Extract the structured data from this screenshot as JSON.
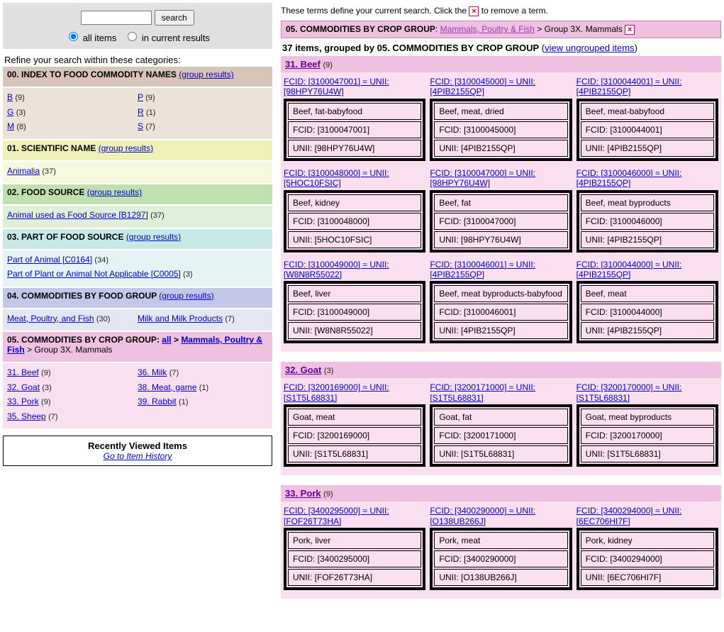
{
  "search": {
    "button": "search",
    "scope_all": "all items",
    "scope_cur": "in current results",
    "scope_sel": "all"
  },
  "refine_heading": "Refine your search within these categories:",
  "categories": {
    "c00": {
      "title": "00. INDEX TO FOOD COMMODITY NAMES",
      "gr": "(group results)",
      "col1": [
        {
          "l": "B",
          "c": "(9)"
        },
        {
          "l": "G",
          "c": "(3)"
        },
        {
          "l": "M",
          "c": "(8)"
        }
      ],
      "col2": [
        {
          "l": "P",
          "c": "(9)"
        },
        {
          "l": "R",
          "c": "(1)"
        },
        {
          "l": "S",
          "c": "(7)"
        }
      ]
    },
    "c01": {
      "title": "01. SCIENTIFIC NAME",
      "gr": "(group results)",
      "items": [
        {
          "l": "Animalia",
          "c": "(37)"
        }
      ]
    },
    "c02": {
      "title": "02. FOOD SOURCE",
      "gr": "(group results)",
      "items": [
        {
          "l": "Animal used as Food Source [B1297]",
          "c": "(37)"
        }
      ]
    },
    "c03": {
      "title": "03. PART OF FOOD SOURCE",
      "gr": "(group results)",
      "items": [
        {
          "l": "Part of Animal [C0164]",
          "c": "(34)"
        },
        {
          "l": "Part of Plant or Animal Not Applicable [C0005]",
          "c": "(3)"
        }
      ]
    },
    "c04": {
      "title": "04. COMMODITIES BY FOOD GROUP",
      "gr": "(group results)",
      "col1": [
        {
          "l": "Meat, Poultry, and Fish",
          "c": "(30)"
        }
      ],
      "col2": [
        {
          "l": "Milk and Milk Products",
          "c": "(7)"
        }
      ]
    },
    "c05": {
      "prefix": "05. COMMODITIES BY CROP GROUP",
      "all": "all",
      "br": "Mammals, Poultry & Fish",
      "tail": "> Group 3X. Mammals",
      "col1": [
        {
          "l": "31. Beef",
          "c": "(9)"
        },
        {
          "l": "32. Goat",
          "c": "(3)"
        },
        {
          "l": "33. Pork",
          "c": "(9)"
        },
        {
          "l": "35. Sheep",
          "c": "(7)"
        }
      ],
      "col2": [
        {
          "l": "36. Milk",
          "c": "(7)"
        },
        {
          "l": "38. Meat, game",
          "c": "(1)"
        },
        {
          "l": "39. Rabbit",
          "c": "(1)"
        }
      ]
    }
  },
  "recent": {
    "title": "Recently Viewed Items",
    "link": "Go to Item History"
  },
  "terms_text_a": "These terms define your current search. Click the",
  "terms_text_b": "to remove a term.",
  "crumb": {
    "label": "05. COMMODITIES BY CROP GROUP",
    "link": "Mammals, Poultry & Fish",
    "tail": "Group 3X. Mammals"
  },
  "countline": {
    "a": "37 items, grouped by",
    "b": "05. COMMODITIES BY CROP GROUP",
    "link": "view ungrouped items"
  },
  "sections": [
    {
      "title": "31. Beef",
      "cnt": "(9)",
      "rows": [
        [
          {
            "link": "FCID: [3100047001] ≈ UNII: [98HPY76U4W]",
            "name": "Beef, fat-babyfood",
            "fcid": "FCID: [3100047001]",
            "unii": "UNII: [98HPY76U4W]"
          },
          {
            "link": "FCID: [3100045000] ≈ UNII: [4PIB2155QP]",
            "name": "Beef, meat, dried",
            "fcid": "FCID: [3100045000]",
            "unii": "UNII: [4PIB2155QP]"
          },
          {
            "link": "FCID: [3100044001] ≈ UNII: [4PIB2155QP]",
            "name": "Beef, meat-babyfood",
            "fcid": "FCID: [3100044001]",
            "unii": "UNII: [4PIB2155QP]"
          }
        ],
        [
          {
            "link": "FCID: [3100048000] ≈ UNII: [5HOC10FSIC]",
            "name": "Beef, kidney",
            "fcid": "FCID: [3100048000]",
            "unii": "UNII: [5HOC10FSIC]"
          },
          {
            "link": "FCID: [3100047000] ≈ UNII: [98HPY76U4W]",
            "name": "Beef, fat",
            "fcid": "FCID: [3100047000]",
            "unii": "UNII: [98HPY76U4W]"
          },
          {
            "link": "FCID: [3100046000] ≈ UNII: [4PIB2155QP]",
            "name": "Beef, meat byproducts",
            "fcid": "FCID: [3100046000]",
            "unii": "UNII: [4PIB2155QP]"
          }
        ],
        [
          {
            "link": "FCID: [3100049000] ≈ UNII: [W8N8R55022]",
            "name": "Beef, liver",
            "fcid": "FCID: [3100049000]",
            "unii": "UNII: [W8N8R55022]"
          },
          {
            "link": "FCID: [3100046001] ≈ UNII: [4PIB2155QP]",
            "name": "Beef, meat byproducts-babyfood",
            "fcid": "FCID: [3100046001]",
            "unii": "UNII: [4PIB2155QP]"
          },
          {
            "link": "FCID: [3100044000] ≈ UNII: [4PIB2155QP]",
            "name": "Beef, meat",
            "fcid": "FCID: [3100044000]",
            "unii": "UNII: [4PIB2155QP]"
          }
        ]
      ]
    },
    {
      "title": "32. Goat",
      "cnt": "(3)",
      "rows": [
        [
          {
            "link": "FCID: [3200169000] ≈ UNII: [S1T5L68831]",
            "name": "Goat, meat",
            "fcid": "FCID: [3200169000]",
            "unii": "UNII: [S1T5L68831]"
          },
          {
            "link": "FCID: [3200171000] ≈ UNII: [S1T5L68831]",
            "name": "Goat, fat",
            "fcid": "FCID: [3200171000]",
            "unii": "UNII: [S1T5L68831]"
          },
          {
            "link": "FCID: [3200170000] ≈ UNII: [S1T5L68831]",
            "name": "Goat, meat byproducts",
            "fcid": "FCID: [3200170000]",
            "unii": "UNII: [S1T5L68831]"
          }
        ]
      ]
    },
    {
      "title": "33. Pork",
      "cnt": "(9)",
      "rows": [
        [
          {
            "link": "FCID: [3400295000] ≈ UNII: [FOF26T73HA]",
            "name": "Pork, liver",
            "fcid": "FCID: [3400295000]",
            "unii": "UNII: [FOF26T73HA]"
          },
          {
            "link": "FCID: [3400290000] ≈ UNII: [O138UB266J]",
            "name": "Pork, meat",
            "fcid": "FCID: [3400290000]",
            "unii": "UNII: [O138UB266J]"
          },
          {
            "link": "FCID: [3400294000] ≈ UNII: [6EC706HI7F]",
            "name": "Pork, kidney",
            "fcid": "FCID: [3400294000]",
            "unii": "UNII: [6EC706HI7F]"
          }
        ]
      ]
    }
  ]
}
